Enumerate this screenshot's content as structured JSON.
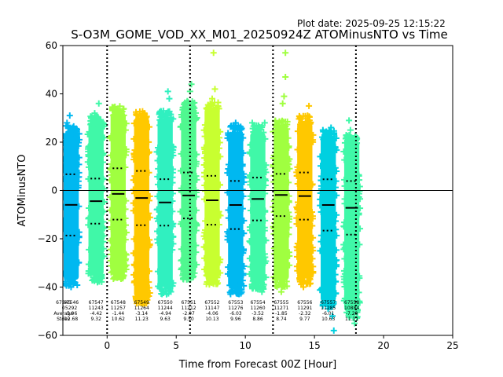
{
  "plot_date": "Plot date: 2025-09-25 12:15:22",
  "chart_data": {
    "type": "scatter",
    "title": "S-O3M_GOME_VOD_XX_M01_20250924Z ATOMinusNTO vs Time",
    "xlabel": "Time from Forecast 00Z [Hour]",
    "ylabel": "ATOMinusNTO",
    "xlim": [
      -3.2,
      25
    ],
    "ylim": [
      -60,
      60
    ],
    "xticks": [
      0,
      5,
      10,
      15,
      20,
      25
    ],
    "yticks": [
      -60,
      -40,
      -20,
      0,
      20,
      40,
      60
    ],
    "vlines": [
      0,
      6,
      12,
      18
    ],
    "hline": 0,
    "series": [
      {
        "x": -2.6,
        "mean": -5.96,
        "std": 12.68,
        "lo": -37,
        "hi": 24,
        "color": "#00b8f0",
        "outliers": [
          [
            -2.7,
            31
          ],
          [
            -2.9,
            28
          ],
          [
            -2.5,
            26
          ],
          [
            -2.8,
            -32
          ],
          [
            -3.0,
            -35
          ]
        ],
        "label": [
          "67546",
          "5292",
          "-5.96",
          "12.68"
        ]
      },
      {
        "x": -0.8,
        "mean": -4.42,
        "std": 9.32,
        "lo": -35,
        "hi": 28,
        "color": "#40f8a8",
        "outliers": [
          [
            -0.6,
            36
          ],
          [
            -0.9,
            32
          ],
          [
            -1.1,
            30
          ],
          [
            -0.7,
            -38
          ]
        ],
        "label": [
          "67547",
          "11243",
          "-4.42",
          "9.32"
        ]
      },
      {
        "x": 0.8,
        "mean": -1.44,
        "std": 10.62,
        "lo": -34,
        "hi": 32,
        "color": "#a0ff40",
        "outliers": [
          [
            0.9,
            33
          ],
          [
            0.6,
            -36
          ]
        ],
        "label": [
          "67548",
          "11257",
          "-1.44",
          "10.62"
        ]
      },
      {
        "x": 2.5,
        "mean": -3.14,
        "std": 11.23,
        "lo": -44,
        "hi": 30,
        "color": "#ffc800",
        "outliers": [
          [
            2.3,
            -38
          ],
          [
            2.7,
            32
          ]
        ],
        "label": [
          "67549",
          "11264",
          "-3.14",
          "11.23"
        ]
      },
      {
        "x": 4.2,
        "mean": -4.94,
        "std": 9.63,
        "lo": -40,
        "hi": 30,
        "color": "#30f0c0",
        "outliers": [
          [
            4.4,
            41
          ],
          [
            4.5,
            38
          ],
          [
            4.0,
            31
          ],
          [
            3.8,
            27
          ],
          [
            4.3,
            -43
          ]
        ],
        "label": [
          "67550",
          "11244",
          "-4.94",
          "9.63"
        ]
      },
      {
        "x": 5.9,
        "mean": -2.07,
        "std": 9.5,
        "lo": -34,
        "hi": 34,
        "color": "#50f890",
        "outliers": [
          [
            6.1,
            44
          ],
          [
            6.0,
            41
          ],
          [
            5.8,
            37
          ],
          [
            6.2,
            -36
          ]
        ],
        "label": [
          "67551",
          "11212",
          "-2.07",
          "9.50"
        ]
      },
      {
        "x": 7.6,
        "mean": -4.06,
        "std": 10.13,
        "lo": -36,
        "hi": 34,
        "color": "#c8ff30",
        "outliers": [
          [
            7.7,
            57
          ],
          [
            7.8,
            42
          ],
          [
            7.6,
            38
          ],
          [
            7.4,
            -38
          ]
        ],
        "label": [
          "67552",
          "11147",
          "-4.06",
          "10.13"
        ]
      },
      {
        "x": 9.3,
        "mean": -6.03,
        "std": 9.96,
        "lo": -40,
        "hi": 24,
        "color": "#00b8f0",
        "outliers": [
          [
            9.3,
            28
          ],
          [
            9.5,
            26
          ],
          [
            9.1,
            -42
          ],
          [
            9.0,
            -37
          ]
        ],
        "label": [
          "67553",
          "11276",
          "-6.03",
          "9.96"
        ]
      },
      {
        "x": 10.9,
        "mean": -3.52,
        "std": 8.86,
        "lo": -38,
        "hi": 24,
        "color": "#40f8a8",
        "outliers": [
          [
            11.4,
            28
          ],
          [
            10.5,
            28
          ],
          [
            11.2,
            -42
          ]
        ],
        "label": [
          "67554",
          "11260",
          "-3.52",
          "8.86"
        ]
      },
      {
        "x": 12.6,
        "mean": -1.85,
        "std": 8.74,
        "lo": -37,
        "hi": 26,
        "color": "#a0ff40",
        "outliers": [
          [
            12.9,
            57
          ],
          [
            12.9,
            47
          ],
          [
            12.8,
            39
          ],
          [
            12.7,
            36
          ],
          [
            12.6,
            -42
          ]
        ],
        "label": [
          "67555",
          "11271",
          "-1.85",
          "8.74"
        ]
      },
      {
        "x": 14.3,
        "mean": -2.32,
        "std": 9.77,
        "lo": -36,
        "hi": 28,
        "color": "#ffc800",
        "outliers": [
          [
            14.6,
            35
          ],
          [
            14.5,
            31
          ],
          [
            14.2,
            -40
          ]
        ],
        "label": [
          "67556",
          "11291",
          "-2.32",
          "9.77"
        ]
      },
      {
        "x": 16.0,
        "mean": -6.01,
        "std": 10.63,
        "lo": -46,
        "hi": 22,
        "color": "#00d0e0",
        "outliers": [
          [
            16.2,
            26
          ],
          [
            16.3,
            -52
          ],
          [
            16.4,
            -58
          ]
        ],
        "label": [
          "67557",
          "11285",
          "-6.01",
          "10.63"
        ]
      },
      {
        "x": 17.7,
        "mean": -7.2,
        "std": 11.11,
        "lo": -50,
        "hi": 20,
        "color": "#40f8a8",
        "outliers": [
          [
            17.5,
            29
          ],
          [
            17.6,
            25
          ],
          [
            17.9,
            -55
          ]
        ],
        "label": [
          "67558",
          "10884",
          "-7.20",
          "11.11"
        ]
      }
    ],
    "row_label": [
      "67545",
      "0",
      "Average",
      "Stdev"
    ]
  }
}
